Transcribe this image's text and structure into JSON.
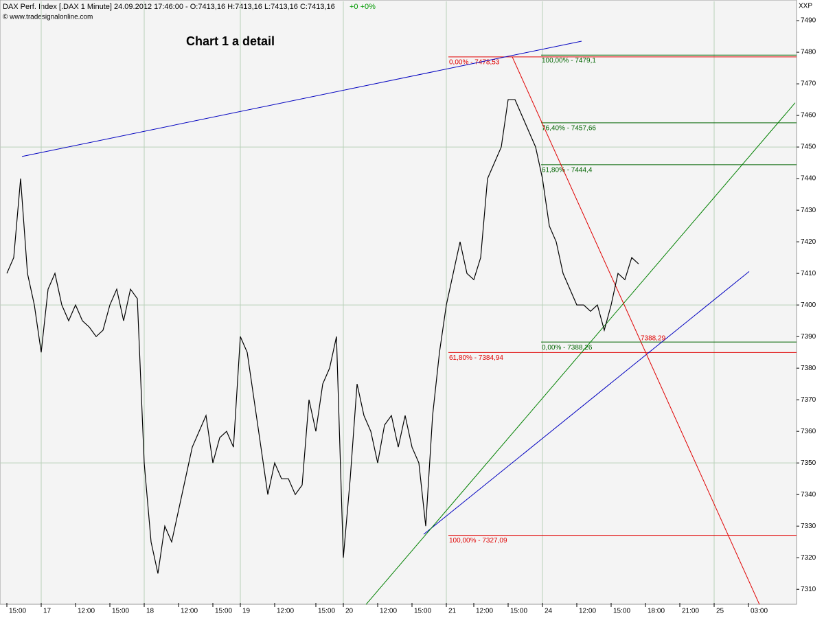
{
  "chart_data": {
    "type": "line",
    "header": "DAX Perf. Index [.DAX  1 Minute] 24.09.2012 17:46:00 - O:7413,16 H:7413,16 L:7413,16 C:7413,16",
    "header_change": "+0 +0%",
    "copyright": "© www.tradesignalonline.com",
    "title": "Chart 1 a detail",
    "axis_name": "XXP",
    "categories": [
      "15:00",
      null,
      null,
      null,
      null,
      "17",
      null,
      null,
      null,
      null,
      "12:00",
      null,
      null,
      null,
      null,
      "15:00",
      null,
      null,
      null,
      null,
      "18",
      null,
      null,
      null,
      null,
      "12:00",
      null,
      null,
      null,
      null,
      "15:00",
      null,
      null,
      null,
      "19",
      null,
      null,
      null,
      null,
      "12:00",
      null,
      null,
      null,
      null,
      null,
      "15:00",
      null,
      null,
      null,
      "20",
      null,
      null,
      null,
      null,
      "12:00",
      null,
      null,
      null,
      null,
      "15:00",
      null,
      null,
      null,
      null,
      "21",
      null,
      null,
      null,
      "12:00",
      null,
      null,
      null,
      null,
      "15:00",
      null,
      null,
      null,
      null,
      "24",
      null,
      null,
      null,
      null,
      "12:00",
      null,
      null,
      null,
      null,
      "15:00",
      null,
      null,
      null,
      null,
      "18:00",
      null,
      null,
      null,
      null,
      "21:00",
      null,
      null,
      null,
      null,
      "25",
      null,
      null,
      null,
      null,
      "03:00",
      null,
      null,
      null,
      null,
      null,
      null
    ],
    "series": [
      {
        "color": "#000000",
        "values": [
          7410,
          7415,
          7440,
          7410,
          7400,
          7385,
          7405,
          7410,
          7400,
          7395,
          7400,
          7395,
          7393,
          7390,
          7392,
          7400,
          7405,
          7395,
          7405,
          7402,
          7350,
          7325,
          7315,
          7330,
          7325,
          7335,
          7345,
          7355,
          7360,
          7365,
          7350,
          7358,
          7360,
          7355,
          7390,
          7385,
          7370,
          7355,
          7340,
          7350,
          7345,
          7345,
          7340,
          7343,
          7370,
          7360,
          7375,
          7380,
          7390,
          7320,
          7345,
          7375,
          7365,
          7360,
          7350,
          7362,
          7365,
          7355,
          7365,
          7355,
          7350,
          7330,
          7365,
          7385,
          7400,
          7410,
          7420,
          7410,
          7408,
          7415,
          7440,
          7445,
          7450,
          7465,
          7465,
          7460,
          7455,
          7450,
          7440,
          7425,
          7420,
          7410,
          7405,
          7400,
          7400,
          7398,
          7400,
          7392,
          7400,
          7410,
          7408,
          7415,
          7413,
          null,
          null,
          null,
          null,
          null,
          null,
          null,
          null,
          null,
          null,
          null,
          null,
          null,
          null,
          null,
          null,
          null,
          null,
          null,
          null,
          null,
          null
        ]
      }
    ],
    "ylim": [
      7305.7,
      7496.1
    ],
    "yticks": [
      7310,
      7320,
      7330,
      7340,
      7350,
      7360,
      7370,
      7380,
      7390,
      7400,
      7410,
      7420,
      7430,
      7440,
      7450,
      7460,
      7470,
      7480,
      7490
    ],
    "grid": true,
    "fib_red": {
      "color": "#e00000",
      "levels": [
        {
          "value": 7478.53,
          "label": "0,00% - 7478,53"
        },
        {
          "value": 7384.94,
          "label": "61,80% - 7384,94"
        },
        {
          "value": 7327.09,
          "label": "100,00% - 7327,09"
        }
      ]
    },
    "fib_green": {
      "color": "#006400",
      "levels": [
        {
          "value": 7479.1,
          "label": "100,00% - 7479,1"
        },
        {
          "value": 7457.66,
          "label": "76,40% - 7457,66"
        },
        {
          "value": 7444.4,
          "label": "61,80% - 7444,4"
        },
        {
          "value": 7388.26,
          "label": "0,00% - 7388,26"
        }
      ]
    },
    "trend_lines": [
      {
        "color": "#0000c0",
        "from": 7447,
        "to": 7483.5
      },
      {
        "color": "#0000c0",
        "from": 7327.4,
        "to": 7410.6
      },
      {
        "color": "#008000",
        "from": 7305.2,
        "to": 7464
      },
      {
        "color": "#e00000",
        "from": 7478.53,
        "to": 7305.2
      }
    ],
    "marker_label": {
      "value": 7388.29,
      "label": "7388,29",
      "color": "#e00000"
    }
  }
}
